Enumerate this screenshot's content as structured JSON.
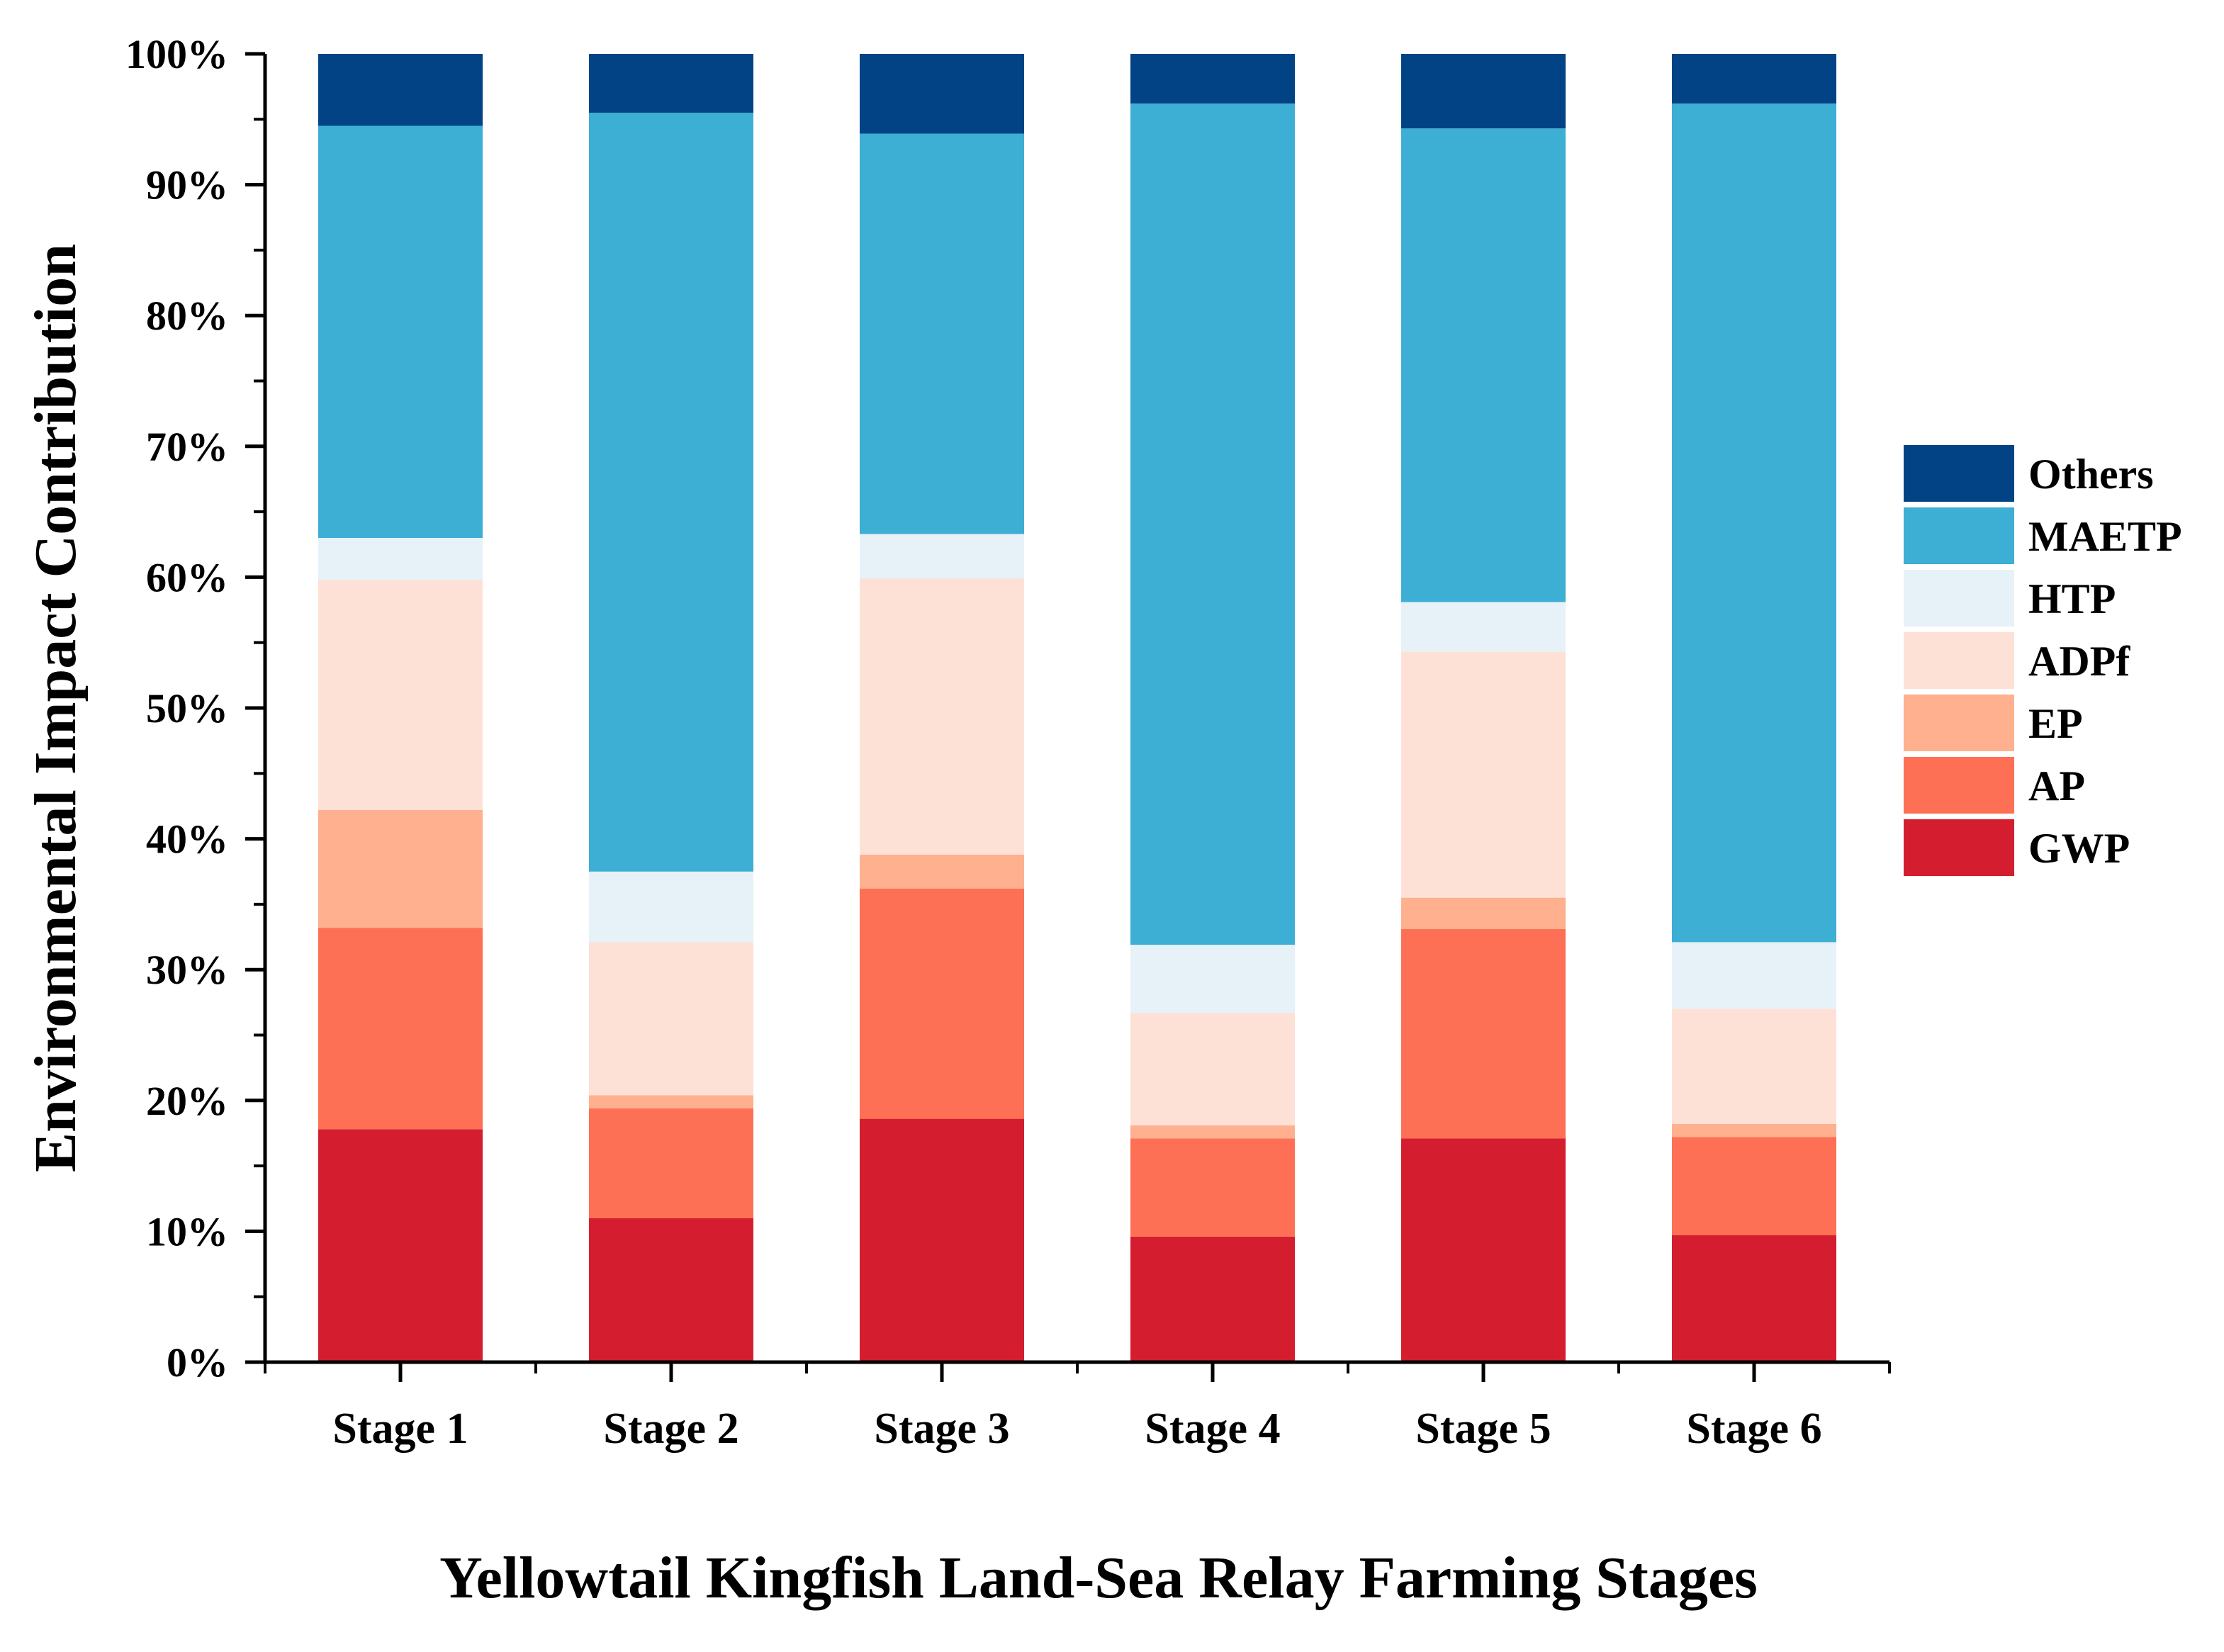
{
  "chart_data": {
    "type": "bar",
    "stacked": true,
    "categories": [
      "Stage 1",
      "Stage 2",
      "Stage 3",
      "Stage 4",
      "Stage 5",
      "Stage 6"
    ],
    "series": [
      {
        "name": "GWP",
        "color": "#d41e2f",
        "values": [
          17.8,
          11.0,
          18.6,
          9.6,
          17.1,
          9.7
        ]
      },
      {
        "name": "AP",
        "color": "#fe7055",
        "values": [
          15.4,
          8.4,
          17.6,
          7.5,
          16.0,
          7.5
        ]
      },
      {
        "name": "EP",
        "color": "#feb08f",
        "values": [
          9.0,
          1.0,
          2.6,
          1.0,
          2.4,
          1.0
        ]
      },
      {
        "name": "ADPf",
        "color": "#fee1d6",
        "values": [
          17.6,
          11.7,
          21.1,
          8.6,
          18.8,
          8.8
        ]
      },
      {
        "name": "HTP",
        "color": "#e6f2f7",
        "values": [
          3.2,
          5.4,
          3.4,
          5.2,
          3.8,
          5.1
        ]
      },
      {
        "name": "MAETP",
        "color": "#3daed4",
        "values": [
          31.5,
          58.0,
          30.6,
          64.3,
          36.2,
          64.1
        ]
      },
      {
        "name": "Others",
        "color": "#024386",
        "values": [
          5.5,
          4.5,
          6.1,
          3.8,
          5.7,
          3.8
        ]
      }
    ],
    "legend_order": [
      "Others",
      "MAETP",
      "HTP",
      "ADPf",
      "EP",
      "AP",
      "GWP"
    ],
    "title": "",
    "xlabel": "Yellowtail Kingfish Land-Sea Relay Farming Stages",
    "ylabel": "Environmental Impact Contribution",
    "ylim": [
      0,
      100
    ],
    "yticks": [
      0,
      10,
      20,
      30,
      40,
      50,
      60,
      70,
      80,
      90,
      100
    ],
    "ytick_labels": [
      "0%",
      "10%",
      "20%",
      "30%",
      "40%",
      "50%",
      "60%",
      "70%",
      "80%",
      "90%",
      "100%"
    ],
    "grid": false,
    "legend_position": "right"
  }
}
